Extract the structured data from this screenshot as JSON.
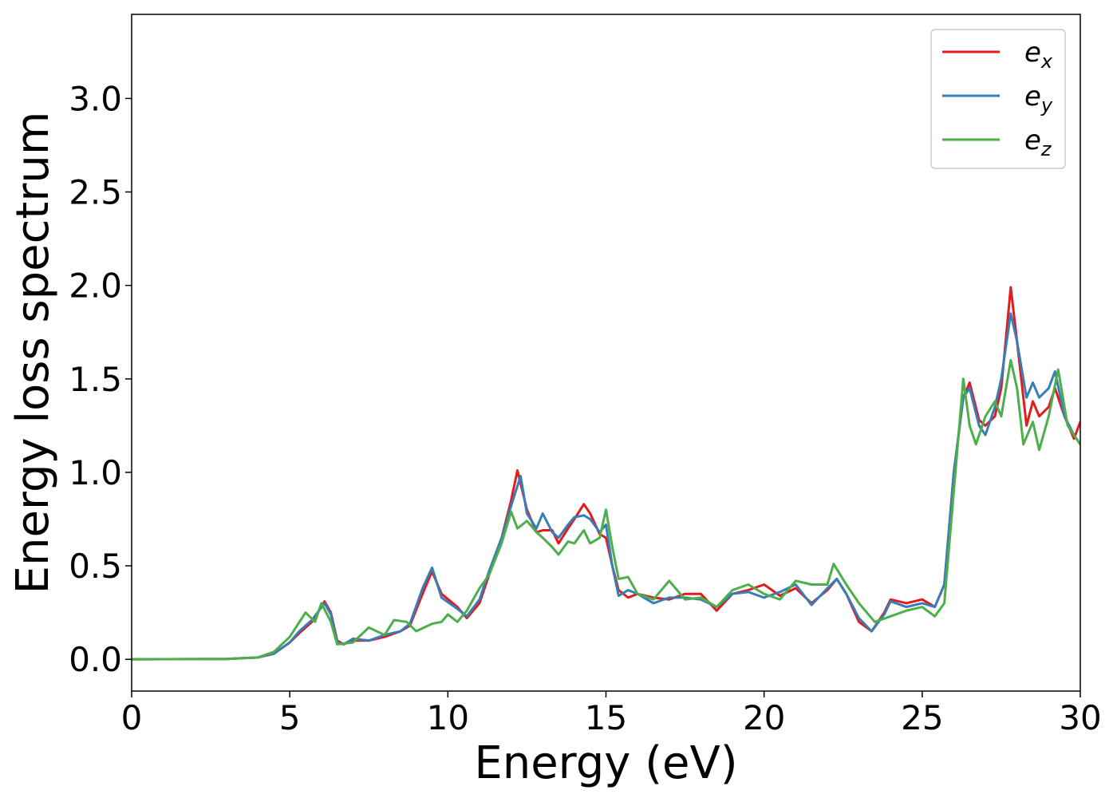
{
  "chart_data": {
    "type": "line",
    "title": "",
    "xlabel": "Energy (eV)",
    "ylabel": "Energy loss spectrum",
    "xlim": [
      0,
      30
    ],
    "ylim": [
      -0.17,
      3.45
    ],
    "xticks": [
      0,
      5,
      10,
      15,
      20,
      25,
      30
    ],
    "xtick_labels": [
      "0",
      "5",
      "10",
      "15",
      "20",
      "25",
      "30"
    ],
    "yticks": [
      0.0,
      0.5,
      1.0,
      1.5,
      2.0,
      2.5,
      3.0
    ],
    "ytick_labels": [
      "0.0",
      "0.5",
      "1.0",
      "1.5",
      "2.0",
      "2.5",
      "3.0"
    ],
    "grid": false,
    "legend_position": "top-right",
    "series": [
      {
        "name": "e_x",
        "label_base": "e",
        "label_sub": "x",
        "color": "#e41a1c",
        "points": [
          [
            0,
            0
          ],
          [
            3,
            0.002
          ],
          [
            4,
            0.01
          ],
          [
            4.5,
            0.03
          ],
          [
            5,
            0.09
          ],
          [
            5.3,
            0.14
          ],
          [
            5.7,
            0.2
          ],
          [
            6.1,
            0.31
          ],
          [
            6.3,
            0.25
          ],
          [
            6.5,
            0.1
          ],
          [
            6.7,
            0.08
          ],
          [
            7,
            0.1
          ],
          [
            7.5,
            0.1
          ],
          [
            8,
            0.12
          ],
          [
            8.5,
            0.15
          ],
          [
            8.8,
            0.18
          ],
          [
            9.2,
            0.35
          ],
          [
            9.5,
            0.47
          ],
          [
            9.8,
            0.35
          ],
          [
            10.3,
            0.28
          ],
          [
            10.6,
            0.22
          ],
          [
            11,
            0.3
          ],
          [
            11.3,
            0.45
          ],
          [
            11.7,
            0.65
          ],
          [
            12,
            0.85
          ],
          [
            12.2,
            1.01
          ],
          [
            12.5,
            0.8
          ],
          [
            12.8,
            0.68
          ],
          [
            13,
            0.69
          ],
          [
            13.3,
            0.69
          ],
          [
            13.5,
            0.62
          ],
          [
            13.8,
            0.7
          ],
          [
            14,
            0.75
          ],
          [
            14.3,
            0.83
          ],
          [
            14.5,
            0.78
          ],
          [
            14.8,
            0.67
          ],
          [
            15,
            0.65
          ],
          [
            15.2,
            0.5
          ],
          [
            15.4,
            0.37
          ],
          [
            15.7,
            0.33
          ],
          [
            16,
            0.35
          ],
          [
            16.5,
            0.33
          ],
          [
            17,
            0.32
          ],
          [
            17.5,
            0.35
          ],
          [
            18,
            0.35
          ],
          [
            18.5,
            0.26
          ],
          [
            19,
            0.35
          ],
          [
            19.5,
            0.37
          ],
          [
            20,
            0.4
          ],
          [
            20.5,
            0.34
          ],
          [
            21,
            0.38
          ],
          [
            21.5,
            0.3
          ],
          [
            22,
            0.37
          ],
          [
            22.3,
            0.43
          ],
          [
            22.6,
            0.35
          ],
          [
            23,
            0.2
          ],
          [
            23.4,
            0.15
          ],
          [
            23.8,
            0.25
          ],
          [
            24,
            0.32
          ],
          [
            24.5,
            0.3
          ],
          [
            25,
            0.32
          ],
          [
            25.4,
            0.28
          ],
          [
            25.7,
            0.4
          ],
          [
            26,
            1.0
          ],
          [
            26.3,
            1.4
          ],
          [
            26.5,
            1.48
          ],
          [
            26.8,
            1.28
          ],
          [
            27,
            1.25
          ],
          [
            27.3,
            1.3
          ],
          [
            27.5,
            1.45
          ],
          [
            27.8,
            1.99
          ],
          [
            28,
            1.7
          ],
          [
            28.3,
            1.25
          ],
          [
            28.5,
            1.38
          ],
          [
            28.7,
            1.3
          ],
          [
            29,
            1.35
          ],
          [
            29.2,
            1.45
          ],
          [
            29.5,
            1.3
          ],
          [
            29.8,
            1.18
          ],
          [
            30,
            1.27
          ]
        ]
      },
      {
        "name": "e_y",
        "label_base": "e",
        "label_sub": "y",
        "color": "#377eb8",
        "points": [
          [
            0,
            0
          ],
          [
            3,
            0.002
          ],
          [
            4,
            0.01
          ],
          [
            4.5,
            0.03
          ],
          [
            5,
            0.09
          ],
          [
            5.3,
            0.15
          ],
          [
            5.7,
            0.21
          ],
          [
            6.1,
            0.3
          ],
          [
            6.3,
            0.24
          ],
          [
            6.5,
            0.09
          ],
          [
            6.7,
            0.08
          ],
          [
            7,
            0.11
          ],
          [
            7.5,
            0.1
          ],
          [
            8,
            0.13
          ],
          [
            8.5,
            0.15
          ],
          [
            8.8,
            0.19
          ],
          [
            9.2,
            0.38
          ],
          [
            9.5,
            0.49
          ],
          [
            9.8,
            0.33
          ],
          [
            10.3,
            0.27
          ],
          [
            10.6,
            0.23
          ],
          [
            11,
            0.32
          ],
          [
            11.3,
            0.47
          ],
          [
            11.7,
            0.65
          ],
          [
            12,
            0.82
          ],
          [
            12.3,
            0.98
          ],
          [
            12.5,
            0.78
          ],
          [
            12.8,
            0.7
          ],
          [
            13,
            0.78
          ],
          [
            13.3,
            0.68
          ],
          [
            13.5,
            0.65
          ],
          [
            13.8,
            0.72
          ],
          [
            14,
            0.76
          ],
          [
            14.3,
            0.77
          ],
          [
            14.5,
            0.75
          ],
          [
            14.8,
            0.68
          ],
          [
            15,
            0.72
          ],
          [
            15.2,
            0.5
          ],
          [
            15.4,
            0.34
          ],
          [
            15.7,
            0.37
          ],
          [
            16,
            0.35
          ],
          [
            16.5,
            0.3
          ],
          [
            17,
            0.33
          ],
          [
            17.5,
            0.33
          ],
          [
            18,
            0.32
          ],
          [
            18.5,
            0.28
          ],
          [
            19,
            0.35
          ],
          [
            19.5,
            0.36
          ],
          [
            20,
            0.33
          ],
          [
            20.5,
            0.36
          ],
          [
            21,
            0.4
          ],
          [
            21.5,
            0.29
          ],
          [
            22,
            0.38
          ],
          [
            22.3,
            0.43
          ],
          [
            22.6,
            0.35
          ],
          [
            23,
            0.22
          ],
          [
            23.4,
            0.15
          ],
          [
            23.8,
            0.24
          ],
          [
            24,
            0.31
          ],
          [
            24.5,
            0.28
          ],
          [
            25,
            0.3
          ],
          [
            25.4,
            0.28
          ],
          [
            25.7,
            0.4
          ],
          [
            26,
            1.0
          ],
          [
            26.3,
            1.4
          ],
          [
            26.5,
            1.45
          ],
          [
            26.8,
            1.25
          ],
          [
            27,
            1.2
          ],
          [
            27.3,
            1.35
          ],
          [
            27.5,
            1.5
          ],
          [
            27.8,
            1.85
          ],
          [
            28,
            1.7
          ],
          [
            28.3,
            1.4
          ],
          [
            28.5,
            1.48
          ],
          [
            28.7,
            1.4
          ],
          [
            29,
            1.45
          ],
          [
            29.2,
            1.54
          ],
          [
            29.5,
            1.3
          ],
          [
            29.8,
            1.2
          ],
          [
            30,
            1.15
          ]
        ]
      },
      {
        "name": "e_z",
        "label_base": "e",
        "label_sub": "z",
        "color": "#4daf4a",
        "points": [
          [
            0,
            0
          ],
          [
            3,
            0.002
          ],
          [
            4,
            0.01
          ],
          [
            4.5,
            0.04
          ],
          [
            5,
            0.12
          ],
          [
            5.5,
            0.25
          ],
          [
            5.8,
            0.2
          ],
          [
            6,
            0.3
          ],
          [
            6.3,
            0.2
          ],
          [
            6.5,
            0.08
          ],
          [
            7,
            0.09
          ],
          [
            7.5,
            0.17
          ],
          [
            8,
            0.13
          ],
          [
            8.3,
            0.21
          ],
          [
            8.7,
            0.2
          ],
          [
            9,
            0.15
          ],
          [
            9.5,
            0.19
          ],
          [
            9.8,
            0.2
          ],
          [
            10,
            0.24
          ],
          [
            10.3,
            0.2
          ],
          [
            10.6,
            0.26
          ],
          [
            11,
            0.38
          ],
          [
            11.3,
            0.45
          ],
          [
            11.7,
            0.62
          ],
          [
            12,
            0.79
          ],
          [
            12.2,
            0.7
          ],
          [
            12.5,
            0.74
          ],
          [
            12.8,
            0.68
          ],
          [
            13,
            0.65
          ],
          [
            13.3,
            0.6
          ],
          [
            13.5,
            0.56
          ],
          [
            13.8,
            0.63
          ],
          [
            14,
            0.62
          ],
          [
            14.3,
            0.69
          ],
          [
            14.5,
            0.62
          ],
          [
            14.8,
            0.65
          ],
          [
            15,
            0.8
          ],
          [
            15.2,
            0.6
          ],
          [
            15.4,
            0.43
          ],
          [
            15.7,
            0.44
          ],
          [
            16,
            0.35
          ],
          [
            16.5,
            0.32
          ],
          [
            17,
            0.42
          ],
          [
            17.5,
            0.32
          ],
          [
            18,
            0.33
          ],
          [
            18.5,
            0.28
          ],
          [
            19,
            0.37
          ],
          [
            19.5,
            0.4
          ],
          [
            20,
            0.35
          ],
          [
            20.5,
            0.32
          ],
          [
            21,
            0.42
          ],
          [
            21.5,
            0.4
          ],
          [
            22,
            0.4
          ],
          [
            22.2,
            0.51
          ],
          [
            22.6,
            0.4
          ],
          [
            23,
            0.3
          ],
          [
            23.5,
            0.2
          ],
          [
            24,
            0.23
          ],
          [
            24.5,
            0.26
          ],
          [
            25,
            0.28
          ],
          [
            25.4,
            0.23
          ],
          [
            25.7,
            0.3
          ],
          [
            26,
            0.9
          ],
          [
            26.3,
            1.5
          ],
          [
            26.5,
            1.25
          ],
          [
            26.7,
            1.15
          ],
          [
            27,
            1.3
          ],
          [
            27.3,
            1.38
          ],
          [
            27.5,
            1.3
          ],
          [
            27.8,
            1.6
          ],
          [
            28,
            1.45
          ],
          [
            28.2,
            1.15
          ],
          [
            28.5,
            1.27
          ],
          [
            28.7,
            1.12
          ],
          [
            29,
            1.3
          ],
          [
            29.3,
            1.55
          ],
          [
            29.6,
            1.25
          ],
          [
            30,
            1.15
          ]
        ]
      }
    ]
  }
}
